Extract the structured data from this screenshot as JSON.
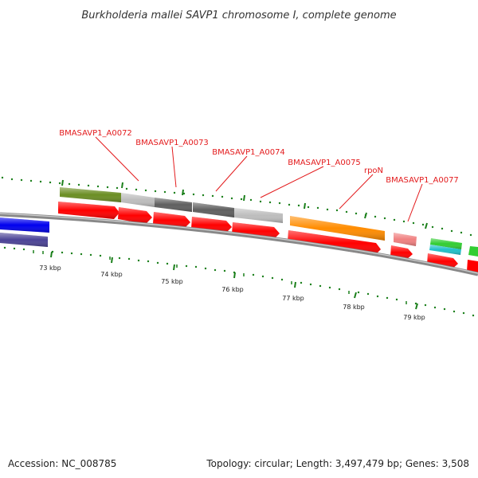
{
  "title": "Burkholderia mallei SAVP1 chromosome I, complete genome",
  "footer": {
    "accession": "Accession: NC_008785",
    "stats": "Topology: circular; Length: 3,497,479 bp; Genes: 3,508"
  },
  "colors": {
    "label": "#e31a1c",
    "backbone": "#888888",
    "cds": "#ff0000",
    "tick": "#1a7f1a"
  },
  "gene_labels": [
    "BMASAVP1_A0072",
    "BMASAVP1_A0073",
    "BMASAVP1_A0074",
    "BMASAVP1_A0075",
    "rpoN",
    "BMASAVP1_A0077"
  ],
  "scale_labels": [
    "73 kbp",
    "74 kbp",
    "75 kbp",
    "76 kbp",
    "77 kbp",
    "78 kbp",
    "79 kbp"
  ]
}
